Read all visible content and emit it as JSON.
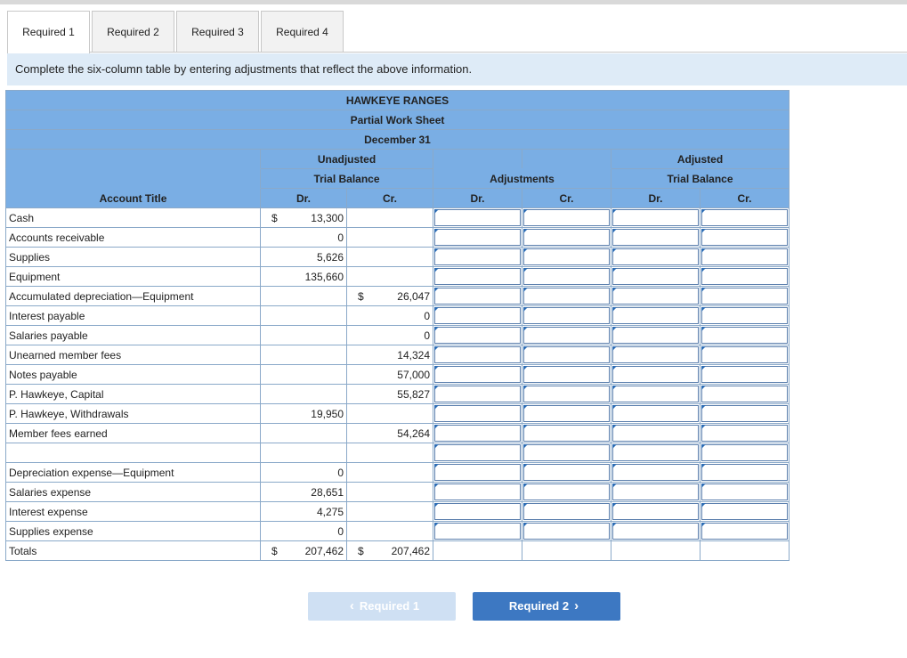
{
  "tabs": [
    {
      "label": "Required 1",
      "active": true
    },
    {
      "label": "Required 2",
      "active": false
    },
    {
      "label": "Required 3",
      "active": false
    },
    {
      "label": "Required 4",
      "active": false
    }
  ],
  "instruction": "Complete the six-column table by entering adjustments that reflect the above information.",
  "worksheet": {
    "company": "HAWKEYE RANGES",
    "title": "Partial Work Sheet",
    "date": "December 31",
    "col_headers": {
      "account_title": "Account Title",
      "unadjusted_1": "Unadjusted",
      "unadjusted_2": "Trial Balance",
      "adjustments": "Adjustments",
      "adjusted_1": "Adjusted",
      "adjusted_2": "Trial Balance",
      "dr": "Dr.",
      "cr": "Cr."
    },
    "currency": "$",
    "rows": [
      {
        "account": "Cash",
        "dr": "13,300",
        "cr": "",
        "dr_sym": "$",
        "cr_sym": ""
      },
      {
        "account": "Accounts receivable",
        "dr": "0",
        "cr": "",
        "dr_sym": "",
        "cr_sym": ""
      },
      {
        "account": "Supplies",
        "dr": "5,626",
        "cr": "",
        "dr_sym": "",
        "cr_sym": ""
      },
      {
        "account": "Equipment",
        "dr": "135,660",
        "cr": "",
        "dr_sym": "",
        "cr_sym": ""
      },
      {
        "account": "Accumulated depreciation—Equipment",
        "dr": "",
        "cr": "26,047",
        "dr_sym": "",
        "cr_sym": "$"
      },
      {
        "account": "Interest payable",
        "dr": "",
        "cr": "0",
        "dr_sym": "",
        "cr_sym": ""
      },
      {
        "account": "Salaries payable",
        "dr": "",
        "cr": "0",
        "dr_sym": "",
        "cr_sym": ""
      },
      {
        "account": "Unearned member fees",
        "dr": "",
        "cr": "14,324",
        "dr_sym": "",
        "cr_sym": ""
      },
      {
        "account": "Notes payable",
        "dr": "",
        "cr": "57,000",
        "dr_sym": "",
        "cr_sym": ""
      },
      {
        "account": "P. Hawkeye, Capital",
        "dr": "",
        "cr": "55,827",
        "dr_sym": "",
        "cr_sym": ""
      },
      {
        "account": "P. Hawkeye, Withdrawals",
        "dr": "19,950",
        "cr": "",
        "dr_sym": "",
        "cr_sym": ""
      },
      {
        "account": "Member fees earned",
        "dr": "",
        "cr": "54,264",
        "dr_sym": "",
        "cr_sym": ""
      },
      {
        "account": "",
        "dr": "",
        "cr": "",
        "dr_sym": "",
        "cr_sym": ""
      },
      {
        "account": "Depreciation expense—Equipment",
        "dr": "0",
        "cr": "",
        "dr_sym": "",
        "cr_sym": ""
      },
      {
        "account": "Salaries expense",
        "dr": "28,651",
        "cr": "",
        "dr_sym": "",
        "cr_sym": ""
      },
      {
        "account": "Interest expense",
        "dr": "4,275",
        "cr": "",
        "dr_sym": "",
        "cr_sym": ""
      },
      {
        "account": "Supplies expense",
        "dr": "0",
        "cr": "",
        "dr_sym": "",
        "cr_sym": ""
      }
    ],
    "totals": {
      "label": "Totals",
      "dr": "207,462",
      "cr": "207,462",
      "dr_sym": "$",
      "cr_sym": "$"
    }
  },
  "buttons": {
    "prev_label": "Required 1",
    "next_label": "Required 2"
  },
  "colors": {
    "header_blue": "#7aaee4",
    "instruction_bg": "#deebf7",
    "next_button": "#3d78c2",
    "prev_button_disabled": "#cfe0f3",
    "input_border": "#5b7fad"
  }
}
